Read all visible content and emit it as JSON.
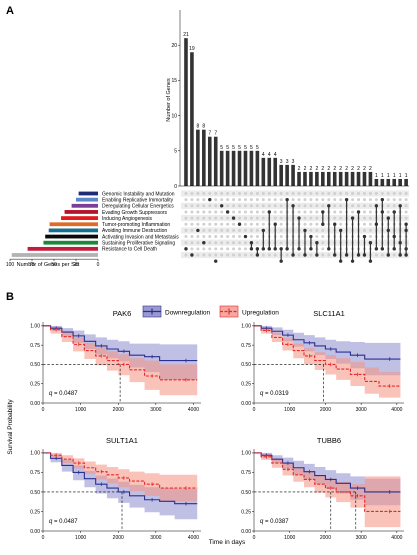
{
  "panel_a_label": "A",
  "panel_b_label": "B",
  "legend": {
    "downregulation": "Downregulation",
    "upregulation": "Upregulation",
    "down_color": "#2b2f8f",
    "up_color": "#e8272a"
  },
  "survival_ylabel": "Survival Probability",
  "survival_xlabel": "Time in days",
  "chart_data": [
    {
      "type": "bar",
      "name": "upset-intersections",
      "ylabel": "Number of Genes",
      "ylim": [
        0,
        25
      ],
      "yticks": [
        0,
        5,
        10,
        15,
        20
      ],
      "values": [
        21,
        19,
        8,
        8,
        7,
        7,
        5,
        5,
        5,
        5,
        5,
        5,
        5,
        4,
        4,
        4,
        3,
        3,
        3,
        2,
        2,
        2,
        2,
        2,
        2,
        2,
        2,
        2,
        2,
        2,
        2,
        2,
        1,
        1,
        1,
        1,
        1,
        1
      ],
      "matrix_columns": [
        [
          9
        ],
        [
          10
        ],
        [
          6
        ],
        [
          8
        ],
        [
          1
        ],
        [
          11
        ],
        [
          2
        ],
        [
          3
        ],
        [
          4
        ],
        [
          5
        ],
        [
          7
        ],
        [
          8,
          9
        ],
        [
          9,
          10
        ],
        [
          6,
          9
        ],
        [
          3,
          9
        ],
        [
          5,
          9
        ],
        [
          9,
          11
        ],
        [
          1,
          9
        ],
        [
          2,
          10
        ],
        [
          4,
          9
        ],
        [
          6,
          10
        ],
        [
          7,
          9
        ],
        [
          8,
          10
        ],
        [
          3,
          5
        ],
        [
          2,
          9
        ],
        [
          5,
          10
        ],
        [
          6,
          11
        ],
        [
          1,
          10
        ],
        [
          4,
          11
        ],
        [
          3,
          10
        ],
        [
          7,
          10
        ],
        [
          8,
          11
        ],
        [
          2,
          5,
          9
        ],
        [
          1,
          3,
          9
        ],
        [
          4,
          6,
          10
        ],
        [
          3,
          7,
          9
        ],
        [
          2,
          8,
          10
        ],
        [
          5,
          6,
          9,
          10
        ]
      ]
    },
    {
      "type": "bar",
      "name": "genes-per-set",
      "xlabel": "Number of Genes per Set",
      "xticks": [
        100,
        75,
        50,
        25,
        0
      ],
      "sets": [
        {
          "name": "Genomic Instability and Mutation",
          "value": 22,
          "color": "#1f2a78"
        },
        {
          "name": "Enabling Replicative Immortality",
          "value": 25,
          "color": "#5c88c9"
        },
        {
          "name": "Deregulating Cellular Energetics",
          "value": 30,
          "color": "#7b3f98"
        },
        {
          "name": "Evading Growth Suppressors",
          "value": 38,
          "color": "#b5122b"
        },
        {
          "name": "Inducing Angiogenesis",
          "value": 42,
          "color": "#e51b1b"
        },
        {
          "name": "Tumor-promoting Inflammation",
          "value": 55,
          "color": "#e06a2a"
        },
        {
          "name": "Avoiding Immune Destruction",
          "value": 56,
          "color": "#176f8f"
        },
        {
          "name": "Activating Invasion and Metastasis",
          "value": 60,
          "color": "#0a0a0a"
        },
        {
          "name": "Sustaining Proliferative Signaling",
          "value": 62,
          "color": "#1a8a3a"
        },
        {
          "name": "Resistance to Cell Death",
          "value": 80,
          "color": "#c41a3b"
        },
        {
          "name": "",
          "value": 98,
          "color": "#b3b3b3"
        }
      ]
    },
    {
      "type": "line",
      "name": "survival-PAK6",
      "title": "PAK6",
      "q_label": "q",
      "q_value": "= 0.0487",
      "xlim": [
        0,
        4200
      ],
      "ylim": [
        0,
        1.05
      ],
      "xticks": [
        0,
        1000,
        2000,
        3000,
        4000
      ],
      "yticks": [
        "0.00",
        "0.25",
        "0.50",
        "0.75",
        "1.00"
      ],
      "median_x": 2050,
      "series": [
        {
          "name": "Downregulation",
          "x": [
            0,
            200,
            500,
            800,
            1100,
            1400,
            1700,
            2000,
            2300,
            2700,
            3100,
            3500,
            4100
          ],
          "y": [
            1.0,
            0.97,
            0.92,
            0.87,
            0.8,
            0.74,
            0.7,
            0.67,
            0.62,
            0.6,
            0.55,
            0.55,
            0.55
          ],
          "lower": [
            1.0,
            0.94,
            0.86,
            0.78,
            0.7,
            0.63,
            0.58,
            0.54,
            0.46,
            0.4,
            0.3,
            0.3,
            0.3
          ],
          "upper": [
            1.0,
            1.0,
            0.97,
            0.94,
            0.89,
            0.85,
            0.82,
            0.8,
            0.77,
            0.77,
            0.76,
            0.76,
            0.76
          ]
        },
        {
          "name": "Upregulation",
          "x": [
            0,
            200,
            500,
            800,
            1100,
            1400,
            1700,
            2000,
            2300,
            2700,
            3100,
            3500,
            4100
          ],
          "y": [
            1.0,
            0.95,
            0.86,
            0.76,
            0.68,
            0.61,
            0.55,
            0.5,
            0.43,
            0.35,
            0.3,
            0.3,
            0.3
          ],
          "lower": [
            1.0,
            0.9,
            0.79,
            0.67,
            0.57,
            0.49,
            0.42,
            0.36,
            0.27,
            0.17,
            0.1,
            0.1,
            0.1
          ],
          "upper": [
            1.0,
            0.99,
            0.93,
            0.85,
            0.78,
            0.72,
            0.67,
            0.63,
            0.58,
            0.55,
            0.5,
            0.5,
            0.5
          ]
        }
      ]
    },
    {
      "type": "line",
      "name": "survival-SLC11A1",
      "title": "SLC11A1",
      "q_label": "q",
      "q_value": "= 0.0319",
      "xlim": [
        0,
        4200
      ],
      "ylim": [
        0,
        1.05
      ],
      "xticks": [
        0,
        1000,
        2000,
        3000,
        4000
      ],
      "yticks": [
        "0.00",
        "0.25",
        "0.50",
        "0.75",
        "1.00"
      ],
      "median_x": 1950,
      "series": [
        {
          "name": "Downregulation",
          "x": [
            0,
            200,
            500,
            800,
            1100,
            1400,
            1700,
            2000,
            2300,
            2700,
            3100,
            3500,
            4100
          ],
          "y": [
            1.0,
            0.97,
            0.93,
            0.88,
            0.82,
            0.78,
            0.74,
            0.7,
            0.66,
            0.62,
            0.57,
            0.57,
            0.57
          ],
          "lower": [
            1.0,
            0.94,
            0.88,
            0.8,
            0.73,
            0.67,
            0.62,
            0.57,
            0.51,
            0.45,
            0.36,
            0.36,
            0.36
          ],
          "upper": [
            1.0,
            1.0,
            0.98,
            0.95,
            0.91,
            0.88,
            0.85,
            0.82,
            0.8,
            0.79,
            0.78,
            0.78,
            0.78
          ]
        },
        {
          "name": "Upregulation",
          "x": [
            0,
            200,
            500,
            800,
            1100,
            1400,
            1700,
            2000,
            2300,
            2700,
            3100,
            3500,
            4100
          ],
          "y": [
            1.0,
            0.94,
            0.85,
            0.76,
            0.68,
            0.61,
            0.55,
            0.5,
            0.44,
            0.37,
            0.28,
            0.22,
            0.22
          ],
          "lower": [
            1.0,
            0.9,
            0.79,
            0.68,
            0.58,
            0.5,
            0.43,
            0.37,
            0.3,
            0.22,
            0.12,
            0.07,
            0.07
          ],
          "upper": [
            1.0,
            0.98,
            0.91,
            0.84,
            0.77,
            0.71,
            0.66,
            0.62,
            0.58,
            0.53,
            0.46,
            0.4,
            0.4
          ]
        }
      ]
    },
    {
      "type": "line",
      "name": "survival-SULT1A1",
      "title": "SULT1A1",
      "q_label": "q",
      "q_value": "= 0.0487",
      "xlim": [
        0,
        4200
      ],
      "ylim": [
        0,
        1.05
      ],
      "xticks": [
        0,
        1000,
        2000,
        3000,
        4000
      ],
      "yticks": [
        "0.00",
        "0.25",
        "0.50",
        "0.75",
        "1.00"
      ],
      "median_x": 2100,
      "series": [
        {
          "name": "Downregulation",
          "x": [
            0,
            200,
            500,
            800,
            1100,
            1400,
            1700,
            2000,
            2300,
            2700,
            3100,
            3500,
            4100
          ],
          "y": [
            1.0,
            0.93,
            0.84,
            0.75,
            0.67,
            0.6,
            0.55,
            0.5,
            0.45,
            0.4,
            0.38,
            0.35,
            0.35
          ],
          "lower": [
            1.0,
            0.88,
            0.76,
            0.65,
            0.56,
            0.48,
            0.42,
            0.36,
            0.3,
            0.24,
            0.2,
            0.15,
            0.15
          ],
          "upper": [
            1.0,
            0.98,
            0.91,
            0.84,
            0.77,
            0.71,
            0.67,
            0.63,
            0.59,
            0.56,
            0.55,
            0.54,
            0.54
          ]
        },
        {
          "name": "Upregulation",
          "x": [
            0,
            200,
            500,
            800,
            1100,
            1400,
            1700,
            2000,
            2300,
            2700,
            3100,
            3500,
            4100
          ],
          "y": [
            1.0,
            0.97,
            0.92,
            0.87,
            0.81,
            0.76,
            0.72,
            0.68,
            0.64,
            0.6,
            0.55,
            0.55,
            0.55
          ],
          "lower": [
            1.0,
            0.94,
            0.87,
            0.8,
            0.73,
            0.66,
            0.61,
            0.56,
            0.51,
            0.45,
            0.38,
            0.38,
            0.38
          ],
          "upper": [
            1.0,
            1.0,
            0.97,
            0.93,
            0.89,
            0.85,
            0.82,
            0.79,
            0.76,
            0.74,
            0.72,
            0.72,
            0.72
          ]
        }
      ]
    },
    {
      "type": "line",
      "name": "survival-TUBB6",
      "title": "TUBB6",
      "q_label": "q",
      "q_value": "= 0.0387",
      "xlim": [
        0,
        4200
      ],
      "ylim": [
        0,
        1.05
      ],
      "xticks": [
        0,
        1000,
        2000,
        3000,
        4000
      ],
      "yticks": [
        "0.00",
        "0.25",
        "0.50",
        "0.75",
        "1.00"
      ],
      "median_x": [
        2150,
        2850
      ],
      "series": [
        {
          "name": "Downregulation",
          "x": [
            0,
            200,
            500,
            800,
            1100,
            1400,
            1700,
            2000,
            2300,
            2700,
            3100,
            3500,
            4100
          ],
          "y": [
            1.0,
            0.97,
            0.92,
            0.87,
            0.81,
            0.76,
            0.71,
            0.66,
            0.61,
            0.55,
            0.5,
            0.5,
            0.5
          ],
          "lower": [
            1.0,
            0.94,
            0.87,
            0.8,
            0.72,
            0.66,
            0.6,
            0.54,
            0.48,
            0.4,
            0.33,
            0.33,
            0.33
          ],
          "upper": [
            1.0,
            1.0,
            0.97,
            0.94,
            0.9,
            0.86,
            0.82,
            0.78,
            0.74,
            0.7,
            0.67,
            0.67,
            0.67
          ]
        },
        {
          "name": "Upregulation",
          "x": [
            0,
            200,
            500,
            800,
            1100,
            1400,
            1700,
            2000,
            2300,
            2700,
            3100,
            3500,
            4100
          ],
          "y": [
            1.0,
            0.95,
            0.87,
            0.79,
            0.72,
            0.66,
            0.6,
            0.55,
            0.5,
            0.45,
            0.25,
            0.25,
            0.25
          ],
          "lower": [
            1.0,
            0.91,
            0.81,
            0.71,
            0.63,
            0.56,
            0.49,
            0.43,
            0.37,
            0.3,
            0.05,
            0.05,
            0.05
          ],
          "upper": [
            1.0,
            0.99,
            0.93,
            0.87,
            0.81,
            0.76,
            0.71,
            0.67,
            0.63,
            0.6,
            0.7,
            0.7,
            0.7
          ]
        }
      ]
    }
  ]
}
